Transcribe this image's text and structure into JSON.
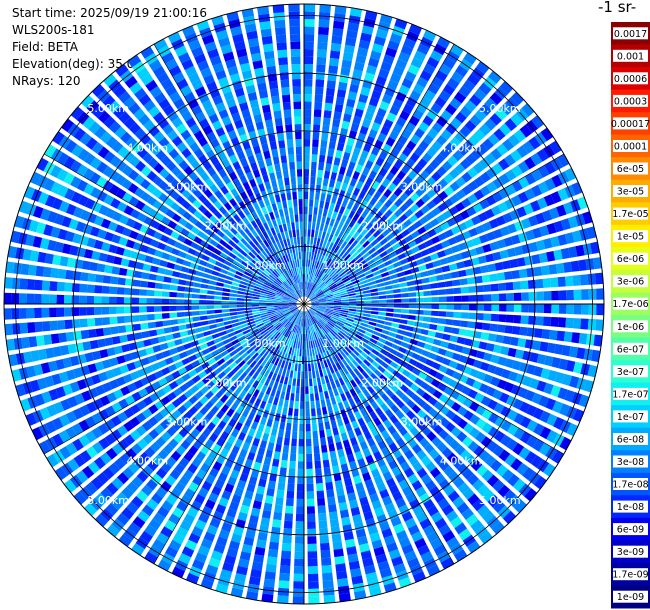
{
  "header": {
    "start_time": "Start time: 2025/09/19 21:00:16",
    "instrument": "WLS200s-181",
    "field": "Field: BETA",
    "elevation": "Elevation(deg): 35.00",
    "nrays": "NRays: 120"
  },
  "colorbar": {
    "unit_title": "-1 sr-",
    "labels": [
      "0.0017",
      "0.001",
      "0.0006",
      "0.0003",
      "0.00017",
      "0.0001",
      "6e-05",
      "3e-05",
      "1.7e-05",
      "1e-05",
      "6e-06",
      "3e-06",
      "1.7e-06",
      "1e-06",
      "6e-07",
      "3e-07",
      "1.7e-07",
      "1e-07",
      "6e-08",
      "3e-08",
      "1.7e-08",
      "1e-08",
      "6e-09",
      "3e-09",
      "1.7e-09",
      "1e-09"
    ],
    "colors": [
      "#8b0000",
      "#b40000",
      "#dc0000",
      "#ff1a00",
      "#ff4000",
      "#ff6400",
      "#ff8a00",
      "#ffac00",
      "#ffcc00",
      "#ffee00",
      "#e6ff1a",
      "#c4ff3a",
      "#9cff60",
      "#78ff80",
      "#50ffa8",
      "#2cffd0",
      "#10f0f0",
      "#00d0ff",
      "#00aaff",
      "#0080ff",
      "#0055ff",
      "#0028ff",
      "#0000ee",
      "#0000c8",
      "#0000a0",
      "#000080"
    ]
  },
  "chart_data": {
    "type": "heatmap",
    "projection": "polar PPI",
    "field": "BETA",
    "elevation_deg": 35.0,
    "n_rays": 120,
    "range_rings_km": [
      1.0,
      2.0,
      3.0,
      4.0,
      5.0
    ],
    "ring_labels": [
      "1.00km",
      "2.00km",
      "3.00km",
      "4.00km",
      "5.00km"
    ],
    "colorscale": "log",
    "value_range": [
      1e-09,
      0.0017
    ],
    "dominant_values": "mostly 1e-08 to 1.7e-07 (blue to cyan), with isolated higher values (~1e-05) near the outer ring"
  }
}
